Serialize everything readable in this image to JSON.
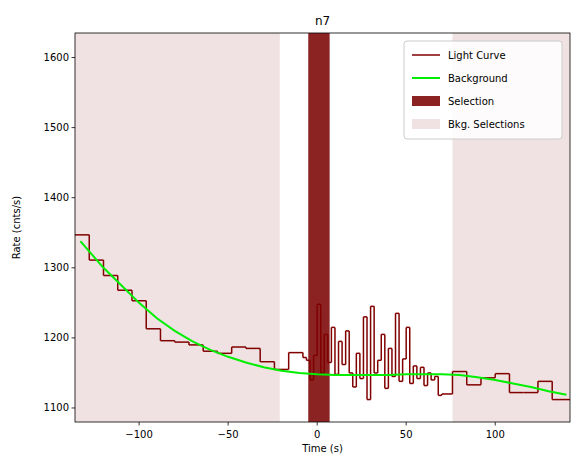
{
  "chart_data": {
    "type": "line",
    "title": "n7",
    "x_label": "Time (s)",
    "y_label": "Rate (cnts/s)",
    "xlim": [
      -136,
      142
    ],
    "ylim": [
      1080,
      1635
    ],
    "xticks": [
      {
        "value": -100,
        "label": "−100"
      },
      {
        "value": -50,
        "label": "−50"
      },
      0,
      50,
      100
    ],
    "yticks": [
      1100,
      1200,
      1300,
      1400,
      1500,
      1600
    ],
    "legend": "upper right",
    "series": [
      {
        "name": "Light Curve",
        "type": "step",
        "color": "#800000",
        "bins": [
          -136,
          -128,
          -120,
          -112,
          -104,
          -96,
          -88,
          -80,
          -72,
          -64,
          -56,
          -48,
          -40,
          -32,
          -24,
          -16,
          -8,
          -6,
          -4,
          -2,
          0,
          2,
          4,
          6,
          8,
          10,
          12,
          14,
          16,
          18,
          20,
          22,
          24,
          26,
          28,
          30,
          32,
          34,
          36,
          38,
          40,
          42,
          44,
          46,
          48,
          50,
          52,
          54,
          56,
          58,
          60,
          62,
          64,
          66,
          68,
          70,
          76,
          84,
          92,
          100,
          108,
          116,
          124,
          132,
          142
        ],
        "values": [
          1347,
          1311,
          1289,
          1268,
          1253,
          1213,
          1196,
          1194,
          1190,
          1181,
          1178,
          1187,
          1185,
          1166,
          1155,
          1179,
          1172,
          1168,
          1140,
          1175,
          1248,
          1150,
          1205,
          1165,
          1215,
          1148,
          1195,
          1162,
          1210,
          1150,
          1130,
          1178,
          1142,
          1230,
          1112,
          1245,
          1150,
          1168,
          1205,
          1128,
          1185,
          1145,
          1235,
          1138,
          1170,
          1215,
          1135,
          1160,
          1142,
          1158,
          1132,
          1150,
          1140,
          1145,
          1118,
          1120,
          1152,
          1133,
          1143,
          1149,
          1122,
          1122,
          1138,
          1112
        ]
      },
      {
        "name": "Background",
        "type": "line",
        "color": "#00ee00",
        "x": [
          -133,
          -120,
          -110,
          -100,
          -90,
          -80,
          -70,
          -60,
          -50,
          -40,
          -30,
          -20,
          -10,
          0,
          10,
          20,
          30,
          40,
          50,
          60,
          70,
          80,
          90,
          100,
          110,
          120,
          130,
          140
        ],
        "values": [
          1338,
          1300,
          1275,
          1250,
          1228,
          1210,
          1195,
          1183,
          1173,
          1165,
          1158,
          1153,
          1150,
          1148,
          1147,
          1147,
          1147,
          1147,
          1148,
          1148,
          1148,
          1147,
          1144,
          1140,
          1135,
          1130,
          1124,
          1119
        ]
      },
      {
        "name": "Selection",
        "type": "span",
        "color": "#8b2323",
        "ranges": [
          [
            -5,
            7
          ]
        ]
      },
      {
        "name": "Bkg. Selections",
        "type": "span",
        "color": "#f0e2e2",
        "ranges": [
          [
            -136,
            -21
          ],
          [
            76,
            142
          ]
        ]
      }
    ]
  }
}
